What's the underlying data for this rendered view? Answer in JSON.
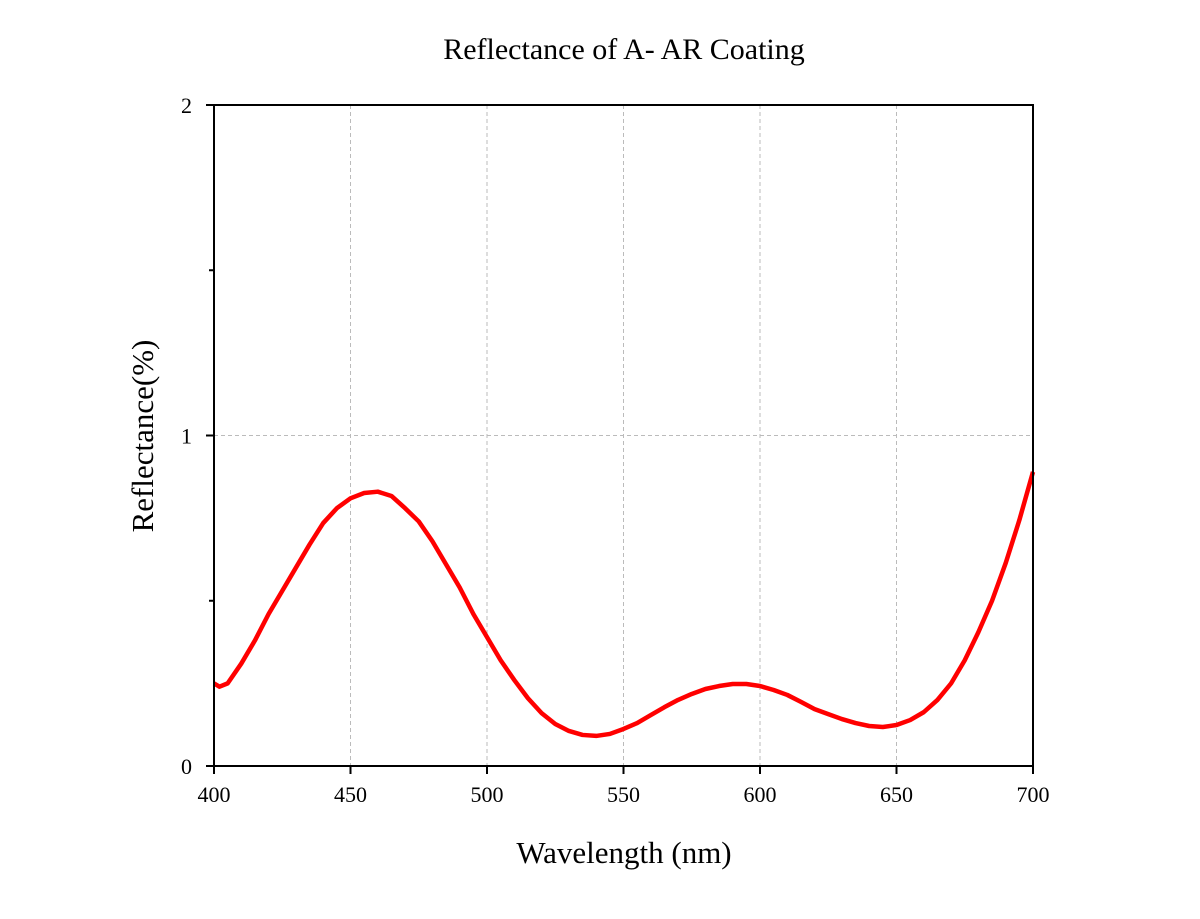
{
  "chart_data": {
    "type": "line",
    "title": "Reflectance of A- AR Coating",
    "x_label": "Wavelength (nm)",
    "y_label": "Reflectance(%)",
    "x": [
      400,
      402,
      405,
      410,
      415,
      420,
      425,
      430,
      435,
      440,
      445,
      450,
      455,
      460,
      465,
      470,
      475,
      480,
      485,
      490,
      495,
      500,
      505,
      510,
      515,
      520,
      525,
      530,
      535,
      540,
      545,
      550,
      555,
      560,
      565,
      570,
      575,
      580,
      585,
      590,
      595,
      600,
      605,
      610,
      615,
      620,
      625,
      630,
      635,
      640,
      645,
      650,
      655,
      660,
      665,
      670,
      675,
      680,
      685,
      690,
      695,
      700
    ],
    "series": [
      {
        "name": "Reflectance",
        "color": "#ff0000",
        "values": [
          0.25,
          0.24,
          0.25,
          0.31,
          0.38,
          0.46,
          0.53,
          0.6,
          0.67,
          0.735,
          0.78,
          0.81,
          0.826,
          0.83,
          0.817,
          0.78,
          0.74,
          0.68,
          0.61,
          0.54,
          0.46,
          0.39,
          0.32,
          0.26,
          0.205,
          0.16,
          0.127,
          0.106,
          0.094,
          0.091,
          0.097,
          0.112,
          0.13,
          0.154,
          0.178,
          0.2,
          0.218,
          0.233,
          0.242,
          0.248,
          0.248,
          0.242,
          0.23,
          0.215,
          0.194,
          0.172,
          0.157,
          0.142,
          0.13,
          0.121,
          0.118,
          0.124,
          0.139,
          0.163,
          0.2,
          0.25,
          0.32,
          0.405,
          0.5,
          0.614,
          0.744,
          0.89
        ]
      }
    ],
    "xlim": [
      400,
      700
    ],
    "xticks": [
      400,
      450,
      500,
      550,
      600,
      650,
      700
    ],
    "ylim": [
      0,
      2
    ],
    "yticks": [
      0,
      1,
      2
    ],
    "yminorticks": [
      0.5,
      1.5
    ],
    "grid": true
  }
}
